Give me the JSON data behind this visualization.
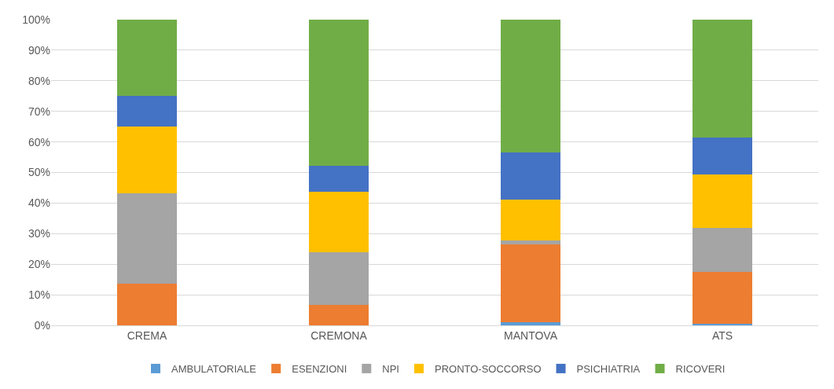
{
  "chart_data": {
    "type": "bar",
    "stacked": true,
    "categories": [
      "CREMA",
      "CREMONA",
      "MANTOVA",
      "ATS"
    ],
    "series": [
      {
        "name": "AMBULATORIALE",
        "color": "#5b9bd5",
        "values": [
          0,
          0,
          1.1,
          0.6
        ]
      },
      {
        "name": "ESENZIONI",
        "color": "#ed7d31",
        "values": [
          13.5,
          6.6,
          25.3,
          17.0
        ]
      },
      {
        "name": "NPI",
        "color": "#a5a5a5",
        "values": [
          29.7,
          17.4,
          1.3,
          14.2
        ]
      },
      {
        "name": "PRONTO-SOCCORSO",
        "color": "#ffc000",
        "values": [
          21.9,
          19.6,
          13.4,
          17.6
        ]
      },
      {
        "name": "PSICHIATRIA",
        "color": "#4472c4",
        "values": [
          9.9,
          8.5,
          15.5,
          12.1
        ]
      },
      {
        "name": "RICOVERI",
        "color": "#70ad47",
        "values": [
          25.0,
          47.9,
          43.4,
          38.5
        ]
      }
    ],
    "ylim": [
      0,
      100
    ],
    "yticks": [
      {
        "value": 0,
        "label": "0%"
      },
      {
        "value": 10,
        "label": "10%"
      },
      {
        "value": 20,
        "label": "20%"
      },
      {
        "value": 30,
        "label": "30%"
      },
      {
        "value": 40,
        "label": "40%"
      },
      {
        "value": 50,
        "label": "50%"
      },
      {
        "value": 60,
        "label": "60%"
      },
      {
        "value": 70,
        "label": "70%"
      },
      {
        "value": 80,
        "label": "80%"
      },
      {
        "value": 90,
        "label": "90%"
      },
      {
        "value": 100,
        "label": "100%"
      }
    ],
    "grid": "y",
    "legend": "bottom"
  }
}
